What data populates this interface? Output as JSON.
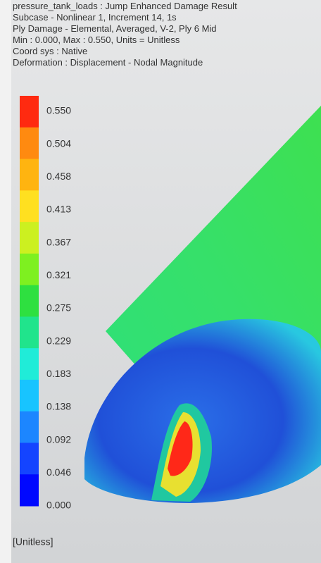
{
  "header": {
    "lines": [
      "pressure_tank_loads : Jump Enhanced Damage Result",
      "Subcase - Nonlinear 1, Increment 14, 1s",
      "Ply Damage - Elemental, Averaged, V-2, Ply 6 Mid",
      "Min : 0.000, Max : 0.550, Units = Unitless",
      "Coord sys : Native",
      "Deformation : Displacement - Nodal Magnitude"
    ]
  },
  "legend": {
    "labels": [
      "0.550",
      "0.504",
      "0.458",
      "0.413",
      "0.367",
      "0.321",
      "0.275",
      "0.229",
      "0.183",
      "0.138",
      "0.092",
      "0.046",
      "0.000"
    ],
    "colors": [
      "#ff2a10",
      "#ff8a10",
      "#ffb410",
      "#ffe020",
      "#ccf020",
      "#7ef020",
      "#2ee040",
      "#20e48c",
      "#20ecd8",
      "#18c4ff",
      "#1c86ff",
      "#1444ff",
      "#0008ff"
    ],
    "units": "[Unitless]"
  }
}
